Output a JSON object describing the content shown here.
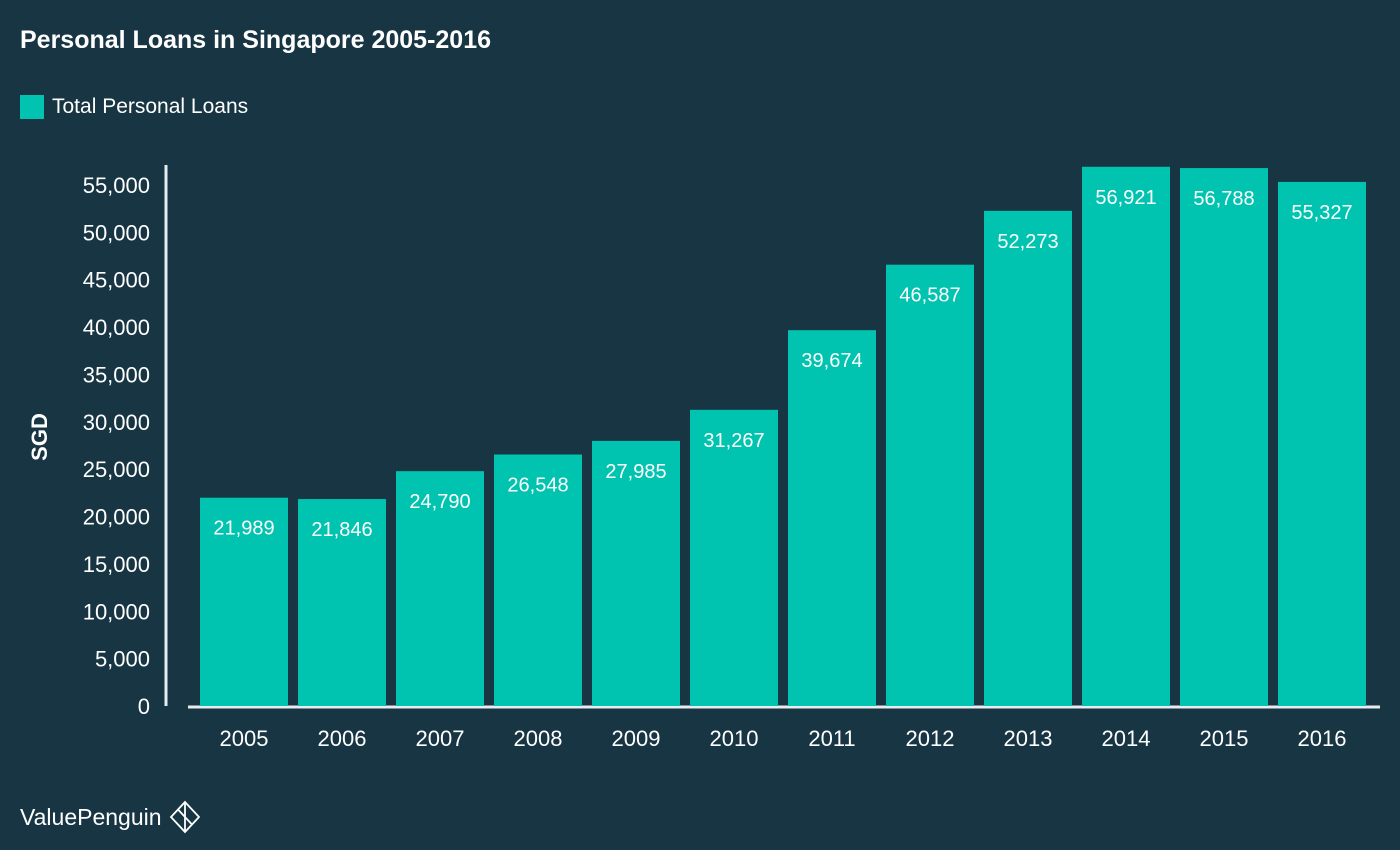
{
  "colors": {
    "background": "#173543",
    "bar": "#00c4b0",
    "text": "#ffffff",
    "axis": "#e6ecef"
  },
  "brand": {
    "name": "ValuePenguin",
    "icon": "penguin-diamond-icon"
  },
  "chart_data": {
    "type": "bar",
    "title": "Personal Loans in Singapore 2005-2016",
    "xlabel": "",
    "ylabel": "SGD",
    "ylim": [
      0,
      55000
    ],
    "y_ticks": [
      0,
      5000,
      10000,
      15000,
      20000,
      25000,
      30000,
      35000,
      40000,
      45000,
      50000,
      55000
    ],
    "grid": false,
    "legend_position": "top-left",
    "categories": [
      "2005",
      "2006",
      "2007",
      "2008",
      "2009",
      "2010",
      "2011",
      "2012",
      "2013",
      "2014",
      "2015",
      "2016"
    ],
    "series": [
      {
        "name": "Total Personal Loans",
        "values": [
          21989,
          21846,
          24790,
          26548,
          27985,
          31267,
          39674,
          46587,
          52273,
          56921,
          56788,
          55327
        ]
      }
    ]
  }
}
